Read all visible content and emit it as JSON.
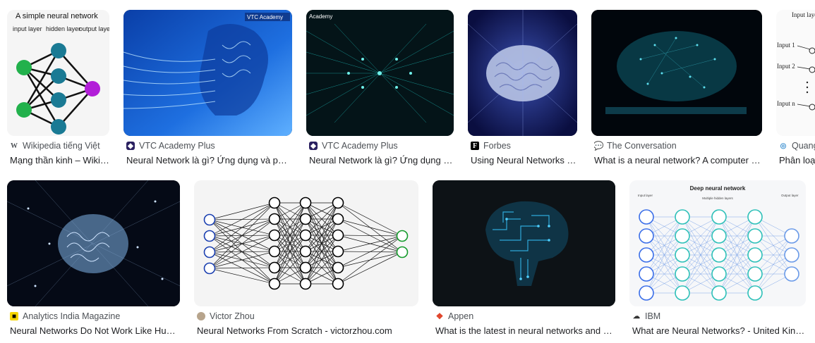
{
  "results": [
    {
      "source": "Wikipedia tiếng Việt",
      "title": "Mạng thần kinh – Wikipedia tiếng Việt",
      "thumb_heading": "A simple neural network",
      "thumb_labels": [
        "input layer",
        "hidden layer",
        "output layer"
      ],
      "favicon": "wikipedia-icon"
    },
    {
      "source": "VTC Academy Plus",
      "title": "Neural Network là gì? Ứng dụng và phân loại",
      "thumb_badge": "VTC Academy",
      "favicon": "vtc-academy-icon"
    },
    {
      "source": "VTC Academy Plus",
      "title": "Neural Network là gì? Ứng dụng và phân loại",
      "thumb_badge": "Academy",
      "favicon": "vtc-academy-icon"
    },
    {
      "source": "Forbes",
      "title": "Using Neural Networks To Predict",
      "favicon": "forbes-icon"
    },
    {
      "source": "The Conversation",
      "title": "What is a neural network? A computer scientist explains",
      "favicon": "the-conversation-icon"
    },
    {
      "source": "Quang",
      "title": "Phân loại",
      "thumb_labels": [
        "Input layer",
        "Input 1",
        "Input 2",
        "Input n"
      ],
      "favicon": "quang-icon"
    },
    {
      "source": "Analytics India Magazine",
      "title": "Neural Networks Do Not Work Like Human Brains",
      "favicon": "analytics-india-icon"
    },
    {
      "source": "Victor Zhou",
      "title": "Neural Networks From Scratch - victorzhou.com",
      "favicon": "victor-zhou-avatar-icon"
    },
    {
      "source": "Appen",
      "title": "What is the latest in neural networks and deep learning",
      "favicon": "appen-icon"
    },
    {
      "source": "IBM",
      "title": "What are Neural Networks? - United Kingdom",
      "thumb_heading": "Deep neural network",
      "thumb_labels": [
        "Input layer",
        "Multiple hidden layers",
        "Output layer"
      ],
      "favicon": "ibm-icon"
    }
  ],
  "colors": {
    "accent": "#1a73e8",
    "source_text": "#4d5156",
    "title_text": "#202124"
  }
}
